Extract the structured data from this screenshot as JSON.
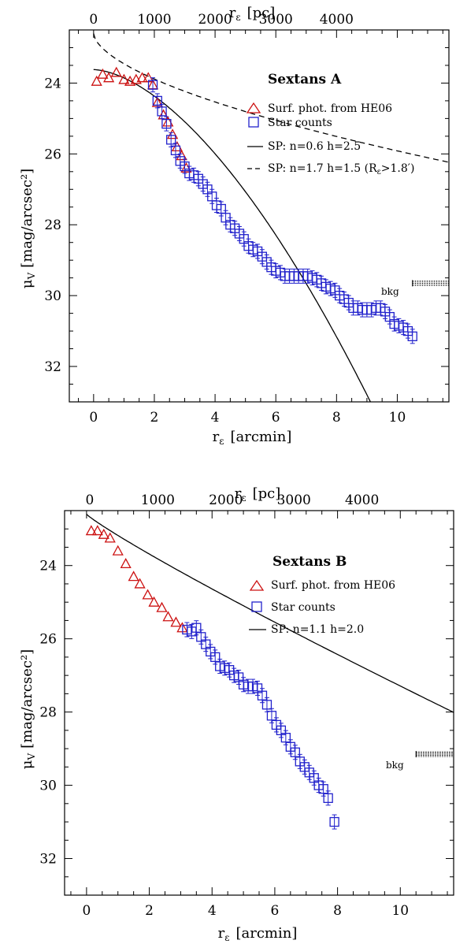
{
  "chart_data": [
    {
      "type": "scatter",
      "title": "Sextans A",
      "xlabel_bottom": "r",
      "xlabel_bottom_sub": "ε",
      "xlabel_bottom_unit": "[arcmin]",
      "xlabel_top": "r",
      "xlabel_top_sub": "ε",
      "xlabel_top_unit": "[pc]",
      "ylabel": "μ",
      "ylabel_sub": "V",
      "ylabel_unit": "[mag/arcsec²]",
      "xlim": [
        -0.8,
        11.7
      ],
      "ylim": [
        33.0,
        22.5
      ],
      "y_reversed": true,
      "x_ticks": [
        0,
        2,
        4,
        6,
        8,
        10
      ],
      "x_tick_labels": [
        "0",
        "2",
        "4",
        "6",
        "8",
        "10"
      ],
      "top_ticks_arcmin": [
        0,
        2.0,
        4.0,
        6.0,
        8.0
      ],
      "top_tick_labels": [
        "0",
        "1000",
        "2000",
        "3000",
        "4000"
      ],
      "y_ticks": [
        24,
        26,
        28,
        30,
        32
      ],
      "y_tick_labels": [
        "24",
        "26",
        "28",
        "30",
        "32"
      ],
      "legend": {
        "photometry": "Surf. phot. from HE06",
        "stars": "Star counts",
        "fit1": "SP: n=0.6   h=2.5",
        "fit2": "SP: n=1.7   h=1.5 (R",
        "fit2_sub": "ε",
        "fit2_tail": ">1.8′)"
      },
      "bkg_label": "bkg",
      "bkg": {
        "x_start": 10.5,
        "y": 29.65
      },
      "series": [
        {
          "name": "Surf. phot. from HE06",
          "marker": "triangle",
          "color": "#cc1111",
          "x": [
            0.1,
            0.3,
            0.5,
            0.75,
            1.0,
            1.2,
            1.4,
            1.6,
            1.8,
            1.95,
            2.1,
            2.3,
            2.45,
            2.6,
            2.75,
            2.9,
            3.05
          ],
          "y": [
            23.95,
            23.75,
            23.85,
            23.7,
            23.9,
            23.95,
            23.9,
            23.85,
            23.85,
            24.05,
            24.55,
            24.9,
            25.1,
            25.45,
            25.8,
            26.05,
            26.4
          ]
        },
        {
          "name": "Star counts",
          "marker": "square",
          "color": "#2222cc",
          "x": [
            1.95,
            2.1,
            2.25,
            2.4,
            2.55,
            2.7,
            2.85,
            3.0,
            3.15,
            3.3,
            3.45,
            3.6,
            3.75,
            3.9,
            4.05,
            4.2,
            4.35,
            4.5,
            4.65,
            4.8,
            4.95,
            5.1,
            5.25,
            5.4,
            5.55,
            5.7,
            5.85,
            6.0,
            6.15,
            6.3,
            6.45,
            6.6,
            6.75,
            6.9,
            7.05,
            7.2,
            7.35,
            7.5,
            7.65,
            7.8,
            7.95,
            8.1,
            8.25,
            8.4,
            8.55,
            8.7,
            8.85,
            9.0,
            9.15,
            9.3,
            9.45,
            9.6,
            9.75,
            9.9,
            10.05,
            10.2,
            10.35,
            10.5
          ],
          "y": [
            24.05,
            24.5,
            24.8,
            25.15,
            25.6,
            25.9,
            26.2,
            26.35,
            26.55,
            26.6,
            26.7,
            26.85,
            27.0,
            27.2,
            27.45,
            27.55,
            27.8,
            28.0,
            28.1,
            28.25,
            28.4,
            28.6,
            28.7,
            28.75,
            28.9,
            29.05,
            29.2,
            29.3,
            29.35,
            29.45,
            29.45,
            29.45,
            29.45,
            29.45,
            29.45,
            29.5,
            29.55,
            29.65,
            29.75,
            29.8,
            29.85,
            30.0,
            30.1,
            30.2,
            30.35,
            30.35,
            30.4,
            30.4,
            30.4,
            30.35,
            30.35,
            30.45,
            30.6,
            30.8,
            30.85,
            30.9,
            31.0,
            31.15
          ]
        }
      ],
      "fits": [
        {
          "name": "SP: n=0.6   h=2.5",
          "style": "solid",
          "mu0": 23.62,
          "h": 2.5,
          "n": 0.6,
          "x_range": [
            0,
            9.7
          ]
        },
        {
          "name": "SP: n=1.7   h=1.5",
          "style": "dashed",
          "mu0": 22.6,
          "h": 1.5,
          "n": 1.7,
          "x_range": [
            0,
            11.7
          ]
        }
      ]
    },
    {
      "type": "scatter",
      "title": "Sextans B",
      "xlabel_bottom": "r",
      "xlabel_bottom_sub": "ε",
      "xlabel_bottom_unit": "[arcmin]",
      "xlabel_top": "r",
      "xlabel_top_sub": "ε",
      "xlabel_top_unit": "[pc]",
      "ylabel": "μ",
      "ylabel_sub": "V",
      "ylabel_unit": "[mag/arcsec²]",
      "xlim": [
        -0.7,
        11.7
      ],
      "ylim": [
        33.0,
        22.5
      ],
      "y_reversed": true,
      "x_ticks": [
        0,
        2,
        4,
        6,
        8,
        10
      ],
      "x_tick_labels": [
        "0",
        "2",
        "4",
        "6",
        "8",
        "10"
      ],
      "top_ticks_arcmin": [
        0.1,
        2.27,
        4.44,
        6.61,
        8.78
      ],
      "top_tick_labels": [
        "0",
        "1000",
        "2000",
        "3000",
        "4000"
      ],
      "y_ticks": [
        24,
        26,
        28,
        30,
        32
      ],
      "y_tick_labels": [
        "24",
        "26",
        "28",
        "30",
        "32"
      ],
      "legend": {
        "photometry": "Surf. phot. from HE06",
        "stars": "Star counts",
        "fit1": "SP: n=1.1   h=2.0"
      },
      "bkg_label": "bkg",
      "bkg": {
        "x_start": 10.5,
        "y": 29.15
      },
      "series": [
        {
          "name": "Surf. phot. from HE06",
          "marker": "triangle",
          "color": "#cc1111",
          "x": [
            0.15,
            0.35,
            0.55,
            0.75,
            1.0,
            1.25,
            1.5,
            1.7,
            1.95,
            2.15,
            2.4,
            2.6,
            2.85,
            3.05
          ],
          "y": [
            23.05,
            23.05,
            23.15,
            23.25,
            23.6,
            23.95,
            24.3,
            24.5,
            24.8,
            25.0,
            25.15,
            25.4,
            25.55,
            25.7
          ]
        },
        {
          "name": "Star counts",
          "marker": "square",
          "color": "#2222cc",
          "x": [
            3.2,
            3.35,
            3.5,
            3.65,
            3.8,
            3.95,
            4.1,
            4.25,
            4.4,
            4.55,
            4.7,
            4.85,
            5.0,
            5.15,
            5.3,
            5.45,
            5.6,
            5.75,
            5.9,
            6.05,
            6.2,
            6.35,
            6.5,
            6.65,
            6.8,
            6.95,
            7.1,
            7.25,
            7.4,
            7.55,
            7.7,
            7.9
          ],
          "y": [
            25.75,
            25.8,
            25.7,
            25.95,
            26.15,
            26.35,
            26.5,
            26.75,
            26.8,
            26.85,
            27.0,
            27.05,
            27.25,
            27.3,
            27.3,
            27.35,
            27.55,
            27.8,
            28.1,
            28.35,
            28.5,
            28.7,
            28.95,
            29.1,
            29.35,
            29.5,
            29.65,
            29.8,
            30.0,
            30.1,
            30.35,
            31.0
          ]
        }
      ],
      "fits": [
        {
          "name": "SP: n=1.1   h=2.0",
          "style": "solid",
          "mu0": 22.6,
          "h": 2.0,
          "n": 1.1,
          "x_range": [
            0,
            11.7
          ]
        }
      ]
    }
  ]
}
